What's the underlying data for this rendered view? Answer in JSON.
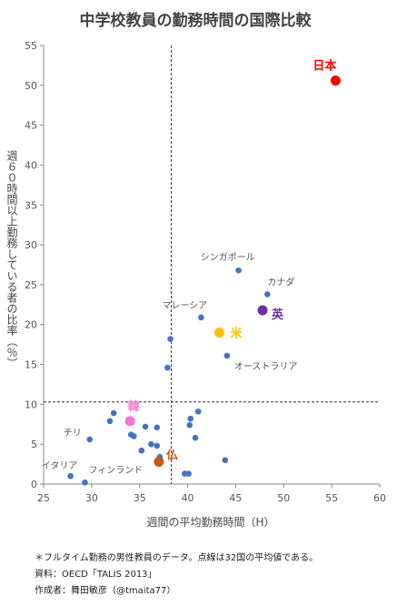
{
  "colors": {
    "point": "#4472C4",
    "japan": "#FF0000",
    "usa": "#FFC000",
    "uk": "#7030A0",
    "korea": "#F07ACF",
    "france": "#C55A11",
    "text": "#555555",
    "title": "#444444"
  },
  "chart_data": {
    "type": "scatter",
    "title": "中学校教員の勤務時間の国際比較",
    "xlabel": "週間の平均勤務時間（H）",
    "ylabel": "週６０時間以上勤務している者の比率（％）",
    "xlim": [
      25,
      60
    ],
    "ylim": [
      0,
      55
    ],
    "xticks": [
      "25",
      "30",
      "35",
      "40",
      "45",
      "50",
      "55",
      "60"
    ],
    "yticks": [
      "0",
      "5",
      "10",
      "15",
      "20",
      "25",
      "30",
      "35",
      "40",
      "45",
      "50",
      "55"
    ],
    "grid": false,
    "reference_lines": {
      "x": 38.3,
      "y": 10.3
    },
    "points": [
      {
        "x": 27.8,
        "y": 1.0
      },
      {
        "x": 29.3,
        "y": 0.2
      },
      {
        "x": 29.8,
        "y": 5.6
      },
      {
        "x": 31.9,
        "y": 7.9
      },
      {
        "x": 32.3,
        "y": 8.9
      },
      {
        "x": 34.1,
        "y": 6.2
      },
      {
        "x": 34.4,
        "y": 6.0
      },
      {
        "x": 35.2,
        "y": 4.2
      },
      {
        "x": 35.6,
        "y": 7.2
      },
      {
        "x": 36.2,
        "y": 5.0
      },
      {
        "x": 36.8,
        "y": 4.8
      },
      {
        "x": 36.8,
        "y": 7.1
      },
      {
        "x": 37.1,
        "y": 3.4
      },
      {
        "x": 37.9,
        "y": 14.6
      },
      {
        "x": 38.2,
        "y": 18.2
      },
      {
        "x": 39.7,
        "y": 1.3
      },
      {
        "x": 40.1,
        "y": 1.3
      },
      {
        "x": 40.2,
        "y": 7.4
      },
      {
        "x": 40.3,
        "y": 8.2
      },
      {
        "x": 40.8,
        "y": 5.8
      },
      {
        "x": 41.1,
        "y": 9.1
      },
      {
        "x": 41.4,
        "y": 20.9
      },
      {
        "x": 43.9,
        "y": 3.0
      },
      {
        "x": 44.1,
        "y": 16.1
      },
      {
        "x": 45.3,
        "y": 26.8
      },
      {
        "x": 48.3,
        "y": 23.8
      }
    ],
    "highlighted": [
      {
        "label": "日本",
        "x": 55.4,
        "y": 50.6,
        "color_key": "japan"
      },
      {
        "label": "米",
        "x": 43.3,
        "y": 19.0,
        "color_key": "usa"
      },
      {
        "label": "英",
        "x": 47.8,
        "y": 21.8,
        "color_key": "uk"
      },
      {
        "label": "韓",
        "x": 34.0,
        "y": 7.9,
        "color_key": "korea"
      },
      {
        "label": "仏",
        "x": 37.0,
        "y": 2.8,
        "color_key": "france"
      }
    ],
    "annotations": [
      {
        "text": "シンガポール",
        "x": 45.3,
        "y": 26.8
      },
      {
        "text": "カナダ",
        "x": 48.3,
        "y": 23.8
      },
      {
        "text": "マレーシア",
        "x": 41.4,
        "y": 20.9
      },
      {
        "text": "オーストラリア",
        "x": 44.1,
        "y": 16.1
      },
      {
        "text": "チリ",
        "x": 29.8,
        "y": 5.6
      },
      {
        "text": "イタリア",
        "x": 27.8,
        "y": 1.0
      },
      {
        "text": "フィンランド",
        "x": 29.3,
        "y": 0.2
      }
    ]
  },
  "footnotes": [
    "＊フルタイム勤務の男性教員のデータ。点線は32国の平均値である。",
    "資料：OECD「TALIS 2013」",
    "作成者：舞田敏彦（@tmaita77）"
  ]
}
